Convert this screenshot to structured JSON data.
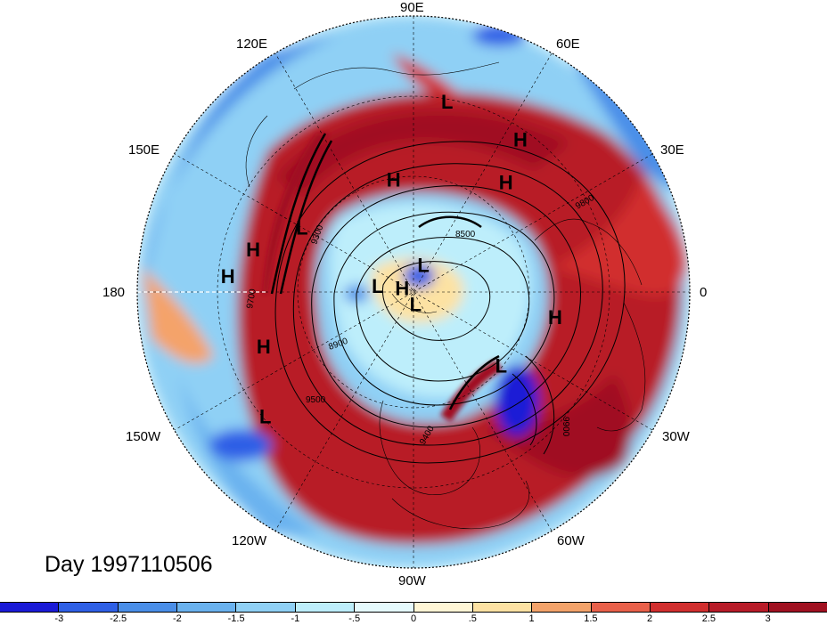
{
  "title": "Day 1997110506",
  "longitude_labels": {
    "e90": "90E",
    "e60": "60E",
    "e30": "30E",
    "zero": "0",
    "w30": "30W",
    "w60": "60W",
    "w90": "90W",
    "w120": "120W",
    "w150": "150W",
    "e180": "180",
    "e150": "150E",
    "e120": "120E"
  },
  "pressure_centers": [
    {
      "type": "L",
      "lon": 80,
      "lat": 20
    },
    {
      "type": "H",
      "lon": 55,
      "lat": 22
    },
    {
      "type": "H",
      "lon": 50,
      "lat": 35
    },
    {
      "type": "H",
      "lon": 100,
      "lat": 45
    },
    {
      "type": "L",
      "lon": 150,
      "lat": 40
    },
    {
      "type": "H",
      "lon": 165,
      "lat": 28
    },
    {
      "type": "H",
      "lon": 175,
      "lat": 22
    },
    {
      "type": "L",
      "lon": 170,
      "lat": 75
    },
    {
      "type": "H",
      "lon": 160,
      "lat": 85
    },
    {
      "type": "L",
      "lon": 70,
      "lat": 78
    },
    {
      "type": "L",
      "lon": -80,
      "lat": 85
    },
    {
      "type": "L",
      "lon": -40,
      "lat": 45
    },
    {
      "type": "H",
      "lon": -10,
      "lat": 35
    },
    {
      "type": "H",
      "lon": -160,
      "lat": 30
    },
    {
      "type": "L",
      "lon": -140,
      "lat": 20
    }
  ],
  "contour_labels": [
    "8500",
    "8900",
    "9300",
    "9400",
    "9500",
    "9700",
    "9800",
    "9900"
  ],
  "colorbar": {
    "ticks": [
      "-3",
      "-2.5",
      "-2",
      "-1.5",
      "-1",
      "-.5",
      "0",
      ".5",
      "1",
      "1.5",
      "2",
      "2.5",
      "3"
    ],
    "colors": [
      "#1a1ad6",
      "#2e5fe6",
      "#4a8ee8",
      "#6ab2ef",
      "#8fd0f5",
      "#bdeefb",
      "#e6fafd",
      "#fff6d6",
      "#fde2a3",
      "#f4a36a",
      "#e9604a",
      "#d12e2e",
      "#b81b28",
      "#a01020"
    ]
  }
}
